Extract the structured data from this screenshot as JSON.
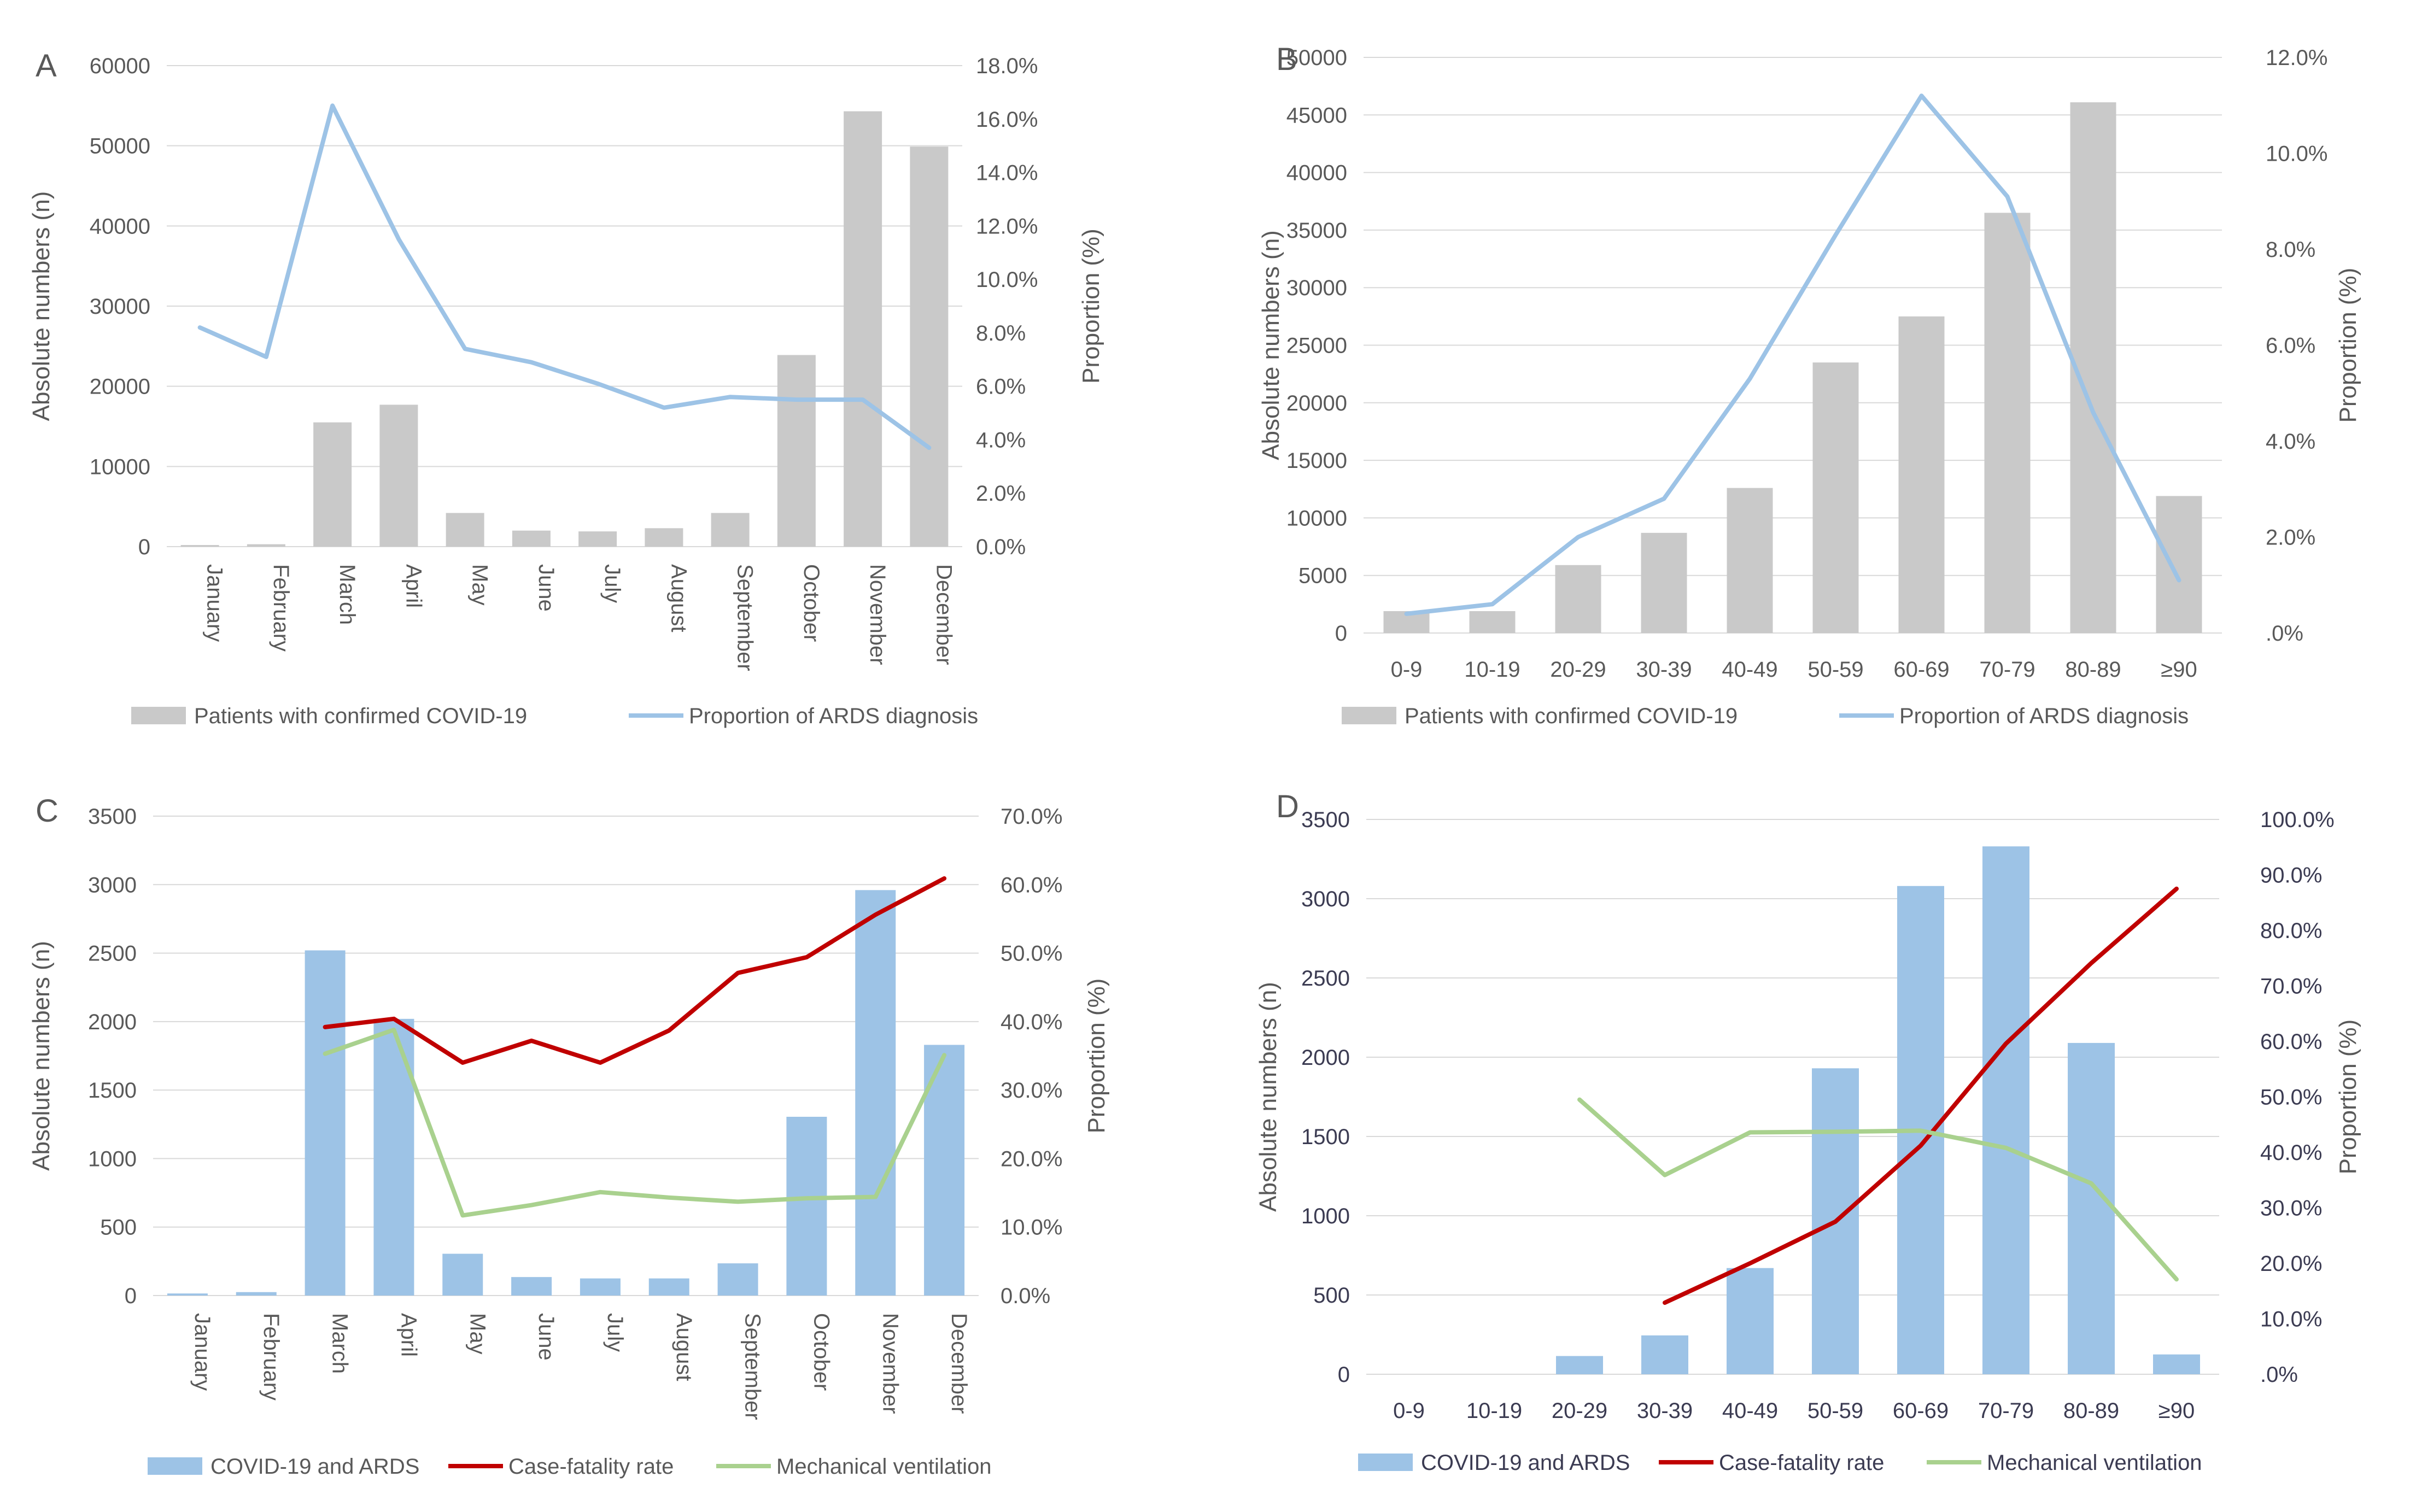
{
  "chart_data": [
    {
      "panel_label": "A",
      "type": "bar",
      "categories": [
        "January",
        "February",
        "March",
        "April",
        "May",
        "June",
        "July",
        "August",
        "September",
        "October",
        "November",
        "December"
      ],
      "categories_rotated": true,
      "series": [
        {
          "name": "Patients with confirmed COVID-19",
          "kind": "bar",
          "axis": "left",
          "color": "#c9c9c9",
          "values": [
            200,
            300,
            15500,
            17700,
            4200,
            2000,
            1900,
            2300,
            4200,
            23900,
            54300,
            49900
          ]
        },
        {
          "name": "Proportion of ARDS diagnosis",
          "kind": "line",
          "axis": "right",
          "color": "#9dc3e6",
          "values": [
            8.2,
            7.1,
            16.5,
            11.5,
            7.4,
            6.9,
            6.1,
            5.2,
            5.6,
            5.5,
            5.5,
            3.7
          ]
        }
      ],
      "ylabel": "Absolute numbers (n)",
      "y2label": "Proportion (%)",
      "ylim": [
        0,
        60000
      ],
      "yticks": [
        0,
        10000,
        20000,
        30000,
        40000,
        50000,
        60000
      ],
      "y2lim": [
        0,
        18
      ],
      "y2tick_labels": [
        "0.0%",
        "2.0%",
        "4.0%",
        "6.0%",
        "8.0%",
        "10.0%",
        "12.0%",
        "14.0%",
        "16.0%",
        "18.0%"
      ],
      "legend_placement": "bottom",
      "grid": true
    },
    {
      "panel_label": "B",
      "type": "bar",
      "categories": [
        "0-9",
        "10-19",
        "20-29",
        "30-39",
        "40-49",
        "50-59",
        "60-69",
        "70-79",
        "80-89",
        "≥90"
      ],
      "categories_rotated": false,
      "series": [
        {
          "name": "Patients with confirmed COVID-19",
          "kind": "bar",
          "axis": "left",
          "color": "#c9c9c9",
          "values": [
            1900,
            1900,
            5900,
            8700,
            12600,
            23500,
            27500,
            36500,
            46100,
            11900
          ]
        },
        {
          "name": "Proportion of ARDS diagnosis",
          "kind": "line",
          "axis": "right",
          "color": "#9dc3e6",
          "values": [
            0.4,
            0.6,
            2.0,
            2.8,
            5.3,
            8.3,
            11.2,
            9.1,
            4.6,
            1.1
          ]
        }
      ],
      "ylabel": "Absolute numbers (n)",
      "y2label": "Proportion (%)",
      "ylim": [
        0,
        50000
      ],
      "yticks": [
        0,
        5000,
        10000,
        15000,
        20000,
        25000,
        30000,
        35000,
        40000,
        45000,
        50000
      ],
      "y2lim": [
        0,
        12
      ],
      "y2tick_labels": [
        ".0%",
        "2.0%",
        "4.0%",
        "6.0%",
        "8.0%",
        "10.0%",
        "12.0%"
      ],
      "legend_placement": "bottom",
      "grid": true
    },
    {
      "panel_label": "C",
      "type": "bar",
      "categories": [
        "January",
        "February",
        "March",
        "April",
        "May",
        "June",
        "July",
        "August",
        "September",
        "October",
        "November",
        "December"
      ],
      "categories_rotated": true,
      "series": [
        {
          "name": "COVID-19 and ARDS",
          "kind": "bar",
          "axis": "left",
          "color": "#9dc3e6",
          "values": [
            15,
            25,
            2520,
            2020,
            305,
            135,
            125,
            125,
            235,
            1305,
            2960,
            1830
          ]
        },
        {
          "name": "Case-fatality rate",
          "kind": "line",
          "axis": "right",
          "color": "#c00000",
          "values": [
            null,
            null,
            39.2,
            40.4,
            34.0,
            37.2,
            34.0,
            38.7,
            47.1,
            49.4,
            55.6,
            60.9
          ]
        },
        {
          "name": "Mechanical ventilation",
          "kind": "line",
          "axis": "right",
          "color": "#a9d18e",
          "values": [
            null,
            null,
            35.3,
            38.8,
            11.7,
            13.2,
            15.1,
            14.3,
            13.7,
            14.2,
            14.4,
            35.1
          ]
        }
      ],
      "ylabel": "Absolute numbers (n)",
      "y2label": "Proportion (%)",
      "ylim": [
        0,
        3500
      ],
      "yticks": [
        0,
        500,
        1000,
        1500,
        2000,
        2500,
        3000,
        3500
      ],
      "y2lim": [
        0,
        70
      ],
      "y2tick_labels": [
        "0.0%",
        "10.0%",
        "20.0%",
        "30.0%",
        "40.0%",
        "50.0%",
        "60.0%",
        "70.0%"
      ],
      "legend_placement": "bottom",
      "grid": true
    },
    {
      "panel_label": "D",
      "type": "bar",
      "categories": [
        "0-9",
        "10-19",
        "20-29",
        "30-39",
        "40-49",
        "50-59",
        "60-69",
        "70-79",
        "80-89",
        "≥90"
      ],
      "categories_rotated": false,
      "series": [
        {
          "name": "COVID-19 and ARDS",
          "kind": "bar",
          "axis": "left",
          "color": "#9dc3e6",
          "values": [
            0,
            0,
            115,
            245,
            670,
            1930,
            3080,
            3330,
            2090,
            125
          ]
        },
        {
          "name": "Case-fatality rate",
          "kind": "line",
          "axis": "right",
          "color": "#c00000",
          "values": [
            null,
            null,
            null,
            12.9,
            20.0,
            27.5,
            41.2,
            59.6,
            74.1,
            87.5
          ]
        },
        {
          "name": "Mechanical ventilation",
          "kind": "line",
          "axis": "right",
          "color": "#a9d18e",
          "values": [
            null,
            null,
            49.5,
            35.9,
            43.6,
            43.7,
            43.9,
            40.8,
            34.4,
            17.1
          ]
        }
      ],
      "ylabel": "Absolute numbers (n)",
      "y2label": "Proportion (%)",
      "ylim": [
        0,
        3500
      ],
      "yticks": [
        0,
        500,
        1000,
        1500,
        2000,
        2500,
        3000,
        3500
      ],
      "y2lim": [
        0,
        100
      ],
      "y2tick_labels": [
        ".0%",
        "10.0%",
        "20.0%",
        "30.0%",
        "40.0%",
        "50.0%",
        "60.0%",
        "70.0%",
        "80.0%",
        "90.0%",
        "100.0%"
      ],
      "legend_placement": "bottom",
      "grid": true
    }
  ]
}
